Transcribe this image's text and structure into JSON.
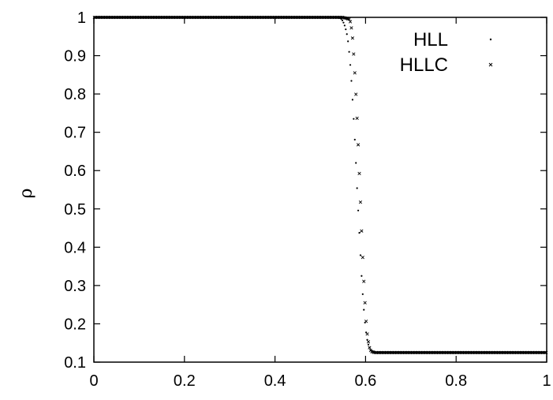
{
  "chart_data": {
    "type": "scatter",
    "title": "",
    "xlabel": "",
    "ylabel": "ρ",
    "xlim": [
      0,
      1
    ],
    "ylim": [
      0.1,
      1
    ],
    "x_ticks": [
      "0",
      "0.2",
      "0.4",
      "0.6",
      "0.8",
      "1"
    ],
    "y_ticks": [
      "0.1",
      "0.2",
      "0.3",
      "0.4",
      "0.5",
      "0.6",
      "0.7",
      "0.8",
      "0.9",
      "1"
    ],
    "grid": false,
    "legend_position": "top-right",
    "series": [
      {
        "name": "HLL",
        "marker": "dot",
        "x": [
          0.0,
          0.05,
          0.1,
          0.15,
          0.2,
          0.25,
          0.3,
          0.35,
          0.4,
          0.45,
          0.5,
          0.53,
          0.545,
          0.55,
          0.555,
          0.56,
          0.563,
          0.566,
          0.569,
          0.572,
          0.575,
          0.578,
          0.581,
          0.584,
          0.587,
          0.59,
          0.593,
          0.596,
          0.599,
          0.602,
          0.605,
          0.608,
          0.611,
          0.615,
          0.62,
          0.63,
          0.65,
          0.7,
          0.75,
          0.8,
          0.85,
          0.9,
          0.95,
          1.0
        ],
        "y": [
          1.0,
          1.0,
          1.0,
          1.0,
          1.0,
          1.0,
          1.0,
          1.0,
          1.0,
          1.0,
          1.0,
          1.0,
          0.998,
          0.99,
          0.975,
          0.95,
          0.92,
          0.88,
          0.83,
          0.77,
          0.71,
          0.64,
          0.56,
          0.49,
          0.42,
          0.35,
          0.29,
          0.24,
          0.2,
          0.17,
          0.15,
          0.14,
          0.132,
          0.128,
          0.126,
          0.125,
          0.125,
          0.125,
          0.125,
          0.125,
          0.125,
          0.125,
          0.125,
          0.125
        ]
      },
      {
        "name": "HLLC",
        "marker": "x",
        "x": [
          0.0,
          0.05,
          0.1,
          0.15,
          0.2,
          0.25,
          0.3,
          0.35,
          0.4,
          0.45,
          0.5,
          0.55,
          0.565,
          0.568,
          0.571,
          0.574,
          0.577,
          0.58,
          0.583,
          0.586,
          0.589,
          0.592,
          0.595,
          0.598,
          0.601,
          0.604,
          0.608,
          0.612,
          0.62,
          0.65,
          0.7,
          0.75,
          0.8,
          0.85,
          0.9,
          0.95,
          1.0
        ],
        "y": [
          1.0,
          1.0,
          1.0,
          1.0,
          1.0,
          1.0,
          1.0,
          1.0,
          1.0,
          1.0,
          1.0,
          1.0,
          0.995,
          0.98,
          0.95,
          0.9,
          0.84,
          0.77,
          0.69,
          0.6,
          0.51,
          0.42,
          0.34,
          0.27,
          0.21,
          0.17,
          0.14,
          0.128,
          0.125,
          0.125,
          0.125,
          0.125,
          0.125,
          0.125,
          0.125,
          0.125,
          0.125
        ]
      }
    ]
  }
}
